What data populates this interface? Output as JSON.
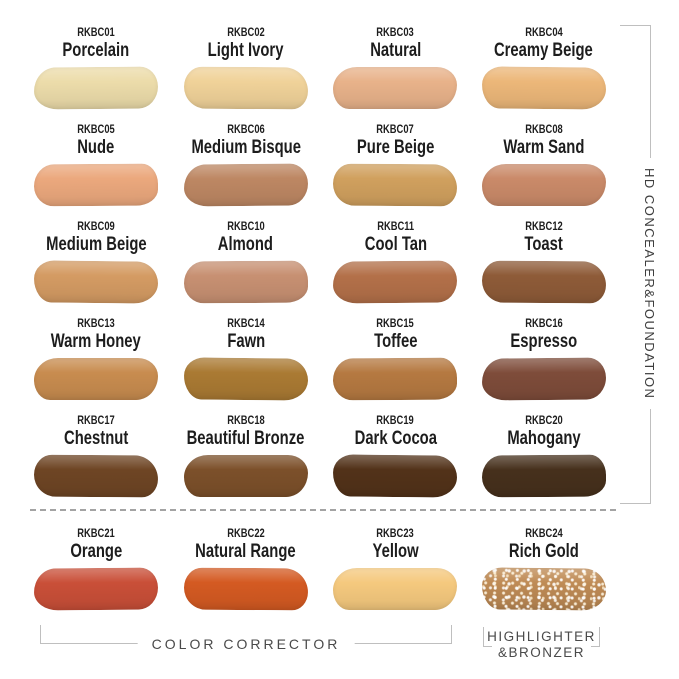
{
  "labels": {
    "right_section": "HD CONCEALER&FOUNDATION",
    "color_corrector": "COLOR CORRECTOR",
    "highlighter_line1": "HIGHLIGHTER",
    "highlighter_line2": "&BRONZER"
  },
  "colors": {
    "background": "#ffffff",
    "label_text": "#1d1d1d",
    "section_text": "#4a4a4a",
    "bracket_line": "#bfbfbf",
    "divider_line": "#a3a3a3"
  },
  "swatches": [
    {
      "code": "RKBC01",
      "name": "Porcelain",
      "color": "#ecdcaa"
    },
    {
      "code": "RKBC02",
      "name": "Light Ivory",
      "color": "#f0d299"
    },
    {
      "code": "RKBC03",
      "name": "Natural",
      "color": "#e8b28a"
    },
    {
      "code": "RKBC04",
      "name": "Creamy Beige",
      "color": "#ecb779"
    },
    {
      "code": "RKBC05",
      "name": "Nude",
      "color": "#eba87d"
    },
    {
      "code": "RKBC06",
      "name": "Medium Bisque",
      "color": "#bd8763"
    },
    {
      "code": "RKBC07",
      "name": "Pure Beige",
      "color": "#d0a05e"
    },
    {
      "code": "RKBC08",
      "name": "Warm Sand",
      "color": "#ca8a69"
    },
    {
      "code": "RKBC09",
      "name": "Medium Beige",
      "color": "#d49b63"
    },
    {
      "code": "RKBC10",
      "name": "Almond",
      "color": "#c79072"
    },
    {
      "code": "RKBC11",
      "name": "Cool Tan",
      "color": "#b37049"
    },
    {
      "code": "RKBC12",
      "name": "Toast",
      "color": "#8e5b38"
    },
    {
      "code": "RKBC13",
      "name": "Warm Honey",
      "color": "#c88c4f"
    },
    {
      "code": "RKBC14",
      "name": "Fawn",
      "color": "#aa7a33"
    },
    {
      "code": "RKBC15",
      "name": "Toffee",
      "color": "#b57941"
    },
    {
      "code": "RKBC16",
      "name": "Espresso",
      "color": "#7e4c3a"
    },
    {
      "code": "RKBC17",
      "name": "Chestnut",
      "color": "#6e4524"
    },
    {
      "code": "RKBC18",
      "name": "Beautiful Bronze",
      "color": "#7c502a"
    },
    {
      "code": "RKBC19",
      "name": "Dark Cocoa",
      "color": "#523219"
    },
    {
      "code": "RKBC20",
      "name": "Mahogany",
      "color": "#46301c"
    },
    {
      "code": "RKBC21",
      "name": "Orange",
      "color": "#c94f38"
    },
    {
      "code": "RKBC22",
      "name": "Natural Range",
      "color": "#d45a22"
    },
    {
      "code": "RKBC23",
      "name": "Yellow",
      "color": "#f5c97e"
    },
    {
      "code": "RKBC24",
      "name": "Rich Gold",
      "color": "#bf8b55",
      "sparkle": true
    }
  ]
}
